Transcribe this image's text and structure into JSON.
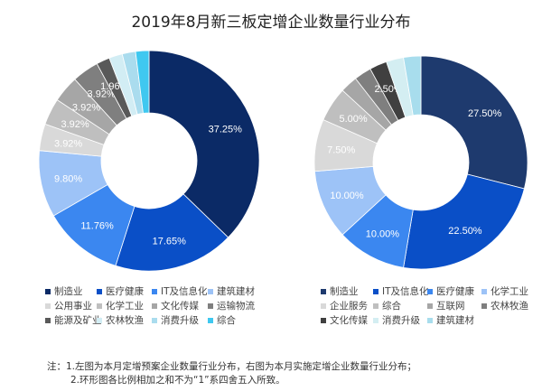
{
  "chart_data": [
    {
      "type": "pie",
      "donut": true,
      "categories": [
        "制造业",
        "医疗健康",
        "IT及信息化",
        "建筑建材",
        "公用事业",
        "化学工业",
        "文化传媒",
        "运输物流",
        "能源及矿业",
        "农林牧渔",
        "消费升级",
        "综合"
      ],
      "values": [
        37.25,
        17.65,
        11.76,
        9.8,
        3.92,
        3.92,
        3.92,
        3.92,
        1.96,
        1.96,
        1.96,
        1.96
      ],
      "data_labels": [
        "37.25%",
        "17.65%",
        "11.76%",
        "9.80%",
        "3.92%",
        "3.92%",
        "3.92%",
        "3.92%",
        "1.96%",
        "",
        "",
        ""
      ],
      "colors": [
        "#0b2a66",
        "#0a4fc7",
        "#3b87f0",
        "#9dc3f7",
        "#d9d9d9",
        "#bfbfbf",
        "#a6a6a6",
        "#7f7f7f",
        "#595959",
        "#d2edf4",
        "#aadcee",
        "#3fc8f0"
      ],
      "legend_position": "bottom"
    },
    {
      "type": "pie",
      "donut": true,
      "categories": [
        "制造业",
        "IT及信息化",
        "医疗健康",
        "化学工业",
        "企业服务",
        "综合",
        "互联网",
        "农林牧渔",
        "文化传媒",
        "消费升级",
        "建筑建材"
      ],
      "values": [
        27.5,
        22.5,
        10.0,
        10.0,
        7.5,
        5.0,
        2.5,
        2.5,
        2.5,
        2.5,
        2.5
      ],
      "data_labels": [
        "27.50%",
        "22.50%",
        "10.00%",
        "10.00%",
        "7.50%",
        "5.00%",
        "",
        "",
        "2.50%",
        "",
        ""
      ],
      "colors": [
        "#1e3a6e",
        "#0a4fc7",
        "#3b87f0",
        "#9dc3f7",
        "#d9d9d9",
        "#bfbfbf",
        "#a6a6a6",
        "#7f7f7f",
        "#404040",
        "#d4eef2",
        "#a8dded"
      ],
      "legend_position": "bottom"
    }
  ],
  "title": "2019年8月新三板定增企业数量行业分布",
  "notes": [
    "注：1.左图为本月定增预案企业数量行业分布，右图为本月实施定增企业数量行业分布；",
    "2.环形图各比例相加之和不为“1”系四舍五入所致。"
  ]
}
